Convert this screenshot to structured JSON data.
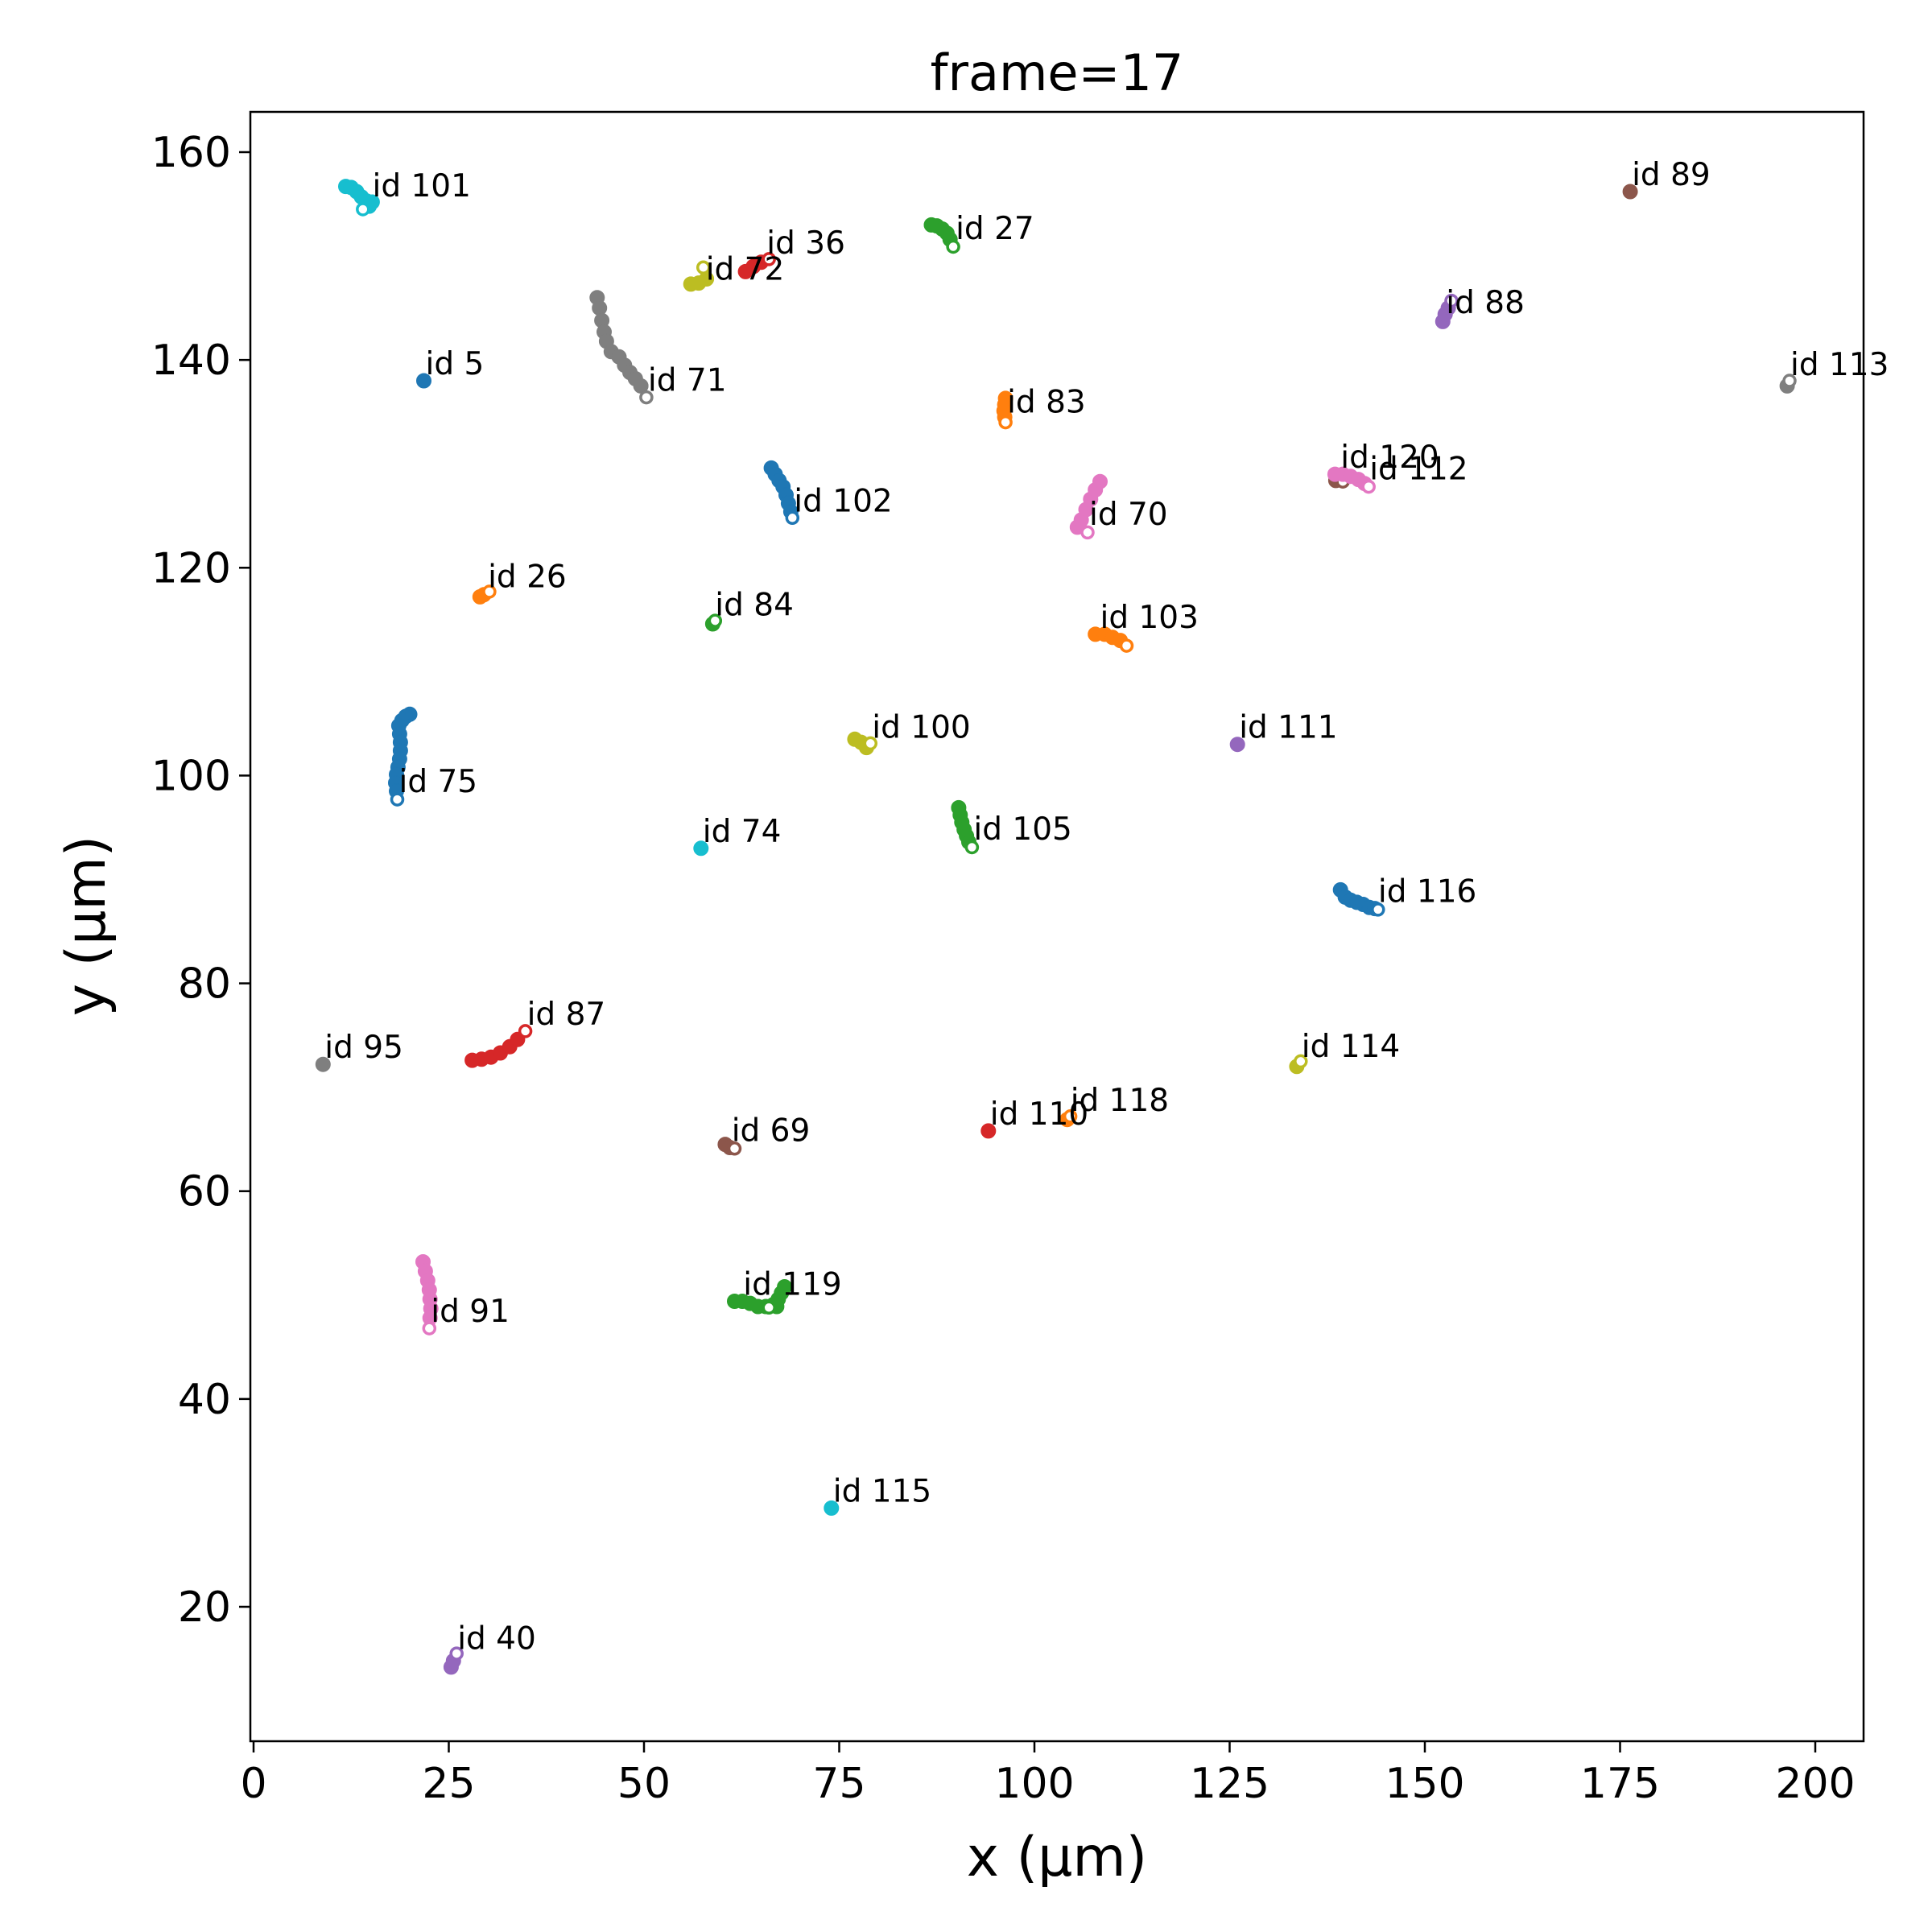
{
  "chart_data": {
    "type": "scatter",
    "title": "frame=17",
    "xlabel": "x (μm)",
    "ylabel": "y (μm)",
    "xlim": [
      -0.5,
      206
    ],
    "ylim": [
      7,
      164
    ],
    "xticks": [
      0,
      25,
      50,
      75,
      100,
      125,
      150,
      175,
      200
    ],
    "yticks": [
      20,
      40,
      60,
      80,
      100,
      120,
      140,
      160
    ],
    "grid": false,
    "legend": "none",
    "series": [
      {
        "label": "id 5",
        "color": "#1f77b4",
        "points": [
          [
            21.8,
            138.0
          ]
        ]
      },
      {
        "label": "id 26",
        "color": "#ff7f0e",
        "points": [
          [
            29.0,
            117.2
          ],
          [
            29.5,
            117.4
          ],
          [
            30.2,
            117.7
          ]
        ]
      },
      {
        "label": "id 27",
        "color": "#2ca02c",
        "points": [
          [
            86.8,
            153.0
          ],
          [
            87.5,
            152.9
          ],
          [
            88.2,
            152.6
          ],
          [
            88.8,
            152.2
          ],
          [
            89.2,
            151.6
          ],
          [
            89.6,
            150.9
          ]
        ]
      },
      {
        "label": "id 36",
        "color": "#d62728",
        "points": [
          [
            63.0,
            148.5
          ],
          [
            64.0,
            149.0
          ],
          [
            65.0,
            149.4
          ],
          [
            66.0,
            149.7
          ]
        ]
      },
      {
        "label": "id 40",
        "color": "#9467bd",
        "points": [
          [
            25.3,
            14.2
          ],
          [
            25.6,
            14.8
          ],
          [
            26.0,
            15.5
          ]
        ]
      },
      {
        "label": "id 69",
        "color": "#8c564b",
        "points": [
          [
            60.4,
            64.5
          ],
          [
            61.0,
            64.2
          ],
          [
            61.6,
            64.1
          ]
        ]
      },
      {
        "label": "id 70",
        "color": "#e377c2",
        "points": [
          [
            105.5,
            123.9
          ],
          [
            106.0,
            124.6
          ],
          [
            106.6,
            125.6
          ],
          [
            107.2,
            126.6
          ],
          [
            107.8,
            127.5
          ],
          [
            108.4,
            128.3
          ],
          [
            106.8,
            123.4
          ]
        ]
      },
      {
        "label": "id 71",
        "color": "#7f7f7f",
        "points": [
          [
            44.0,
            146.0
          ],
          [
            44.3,
            145.0
          ],
          [
            44.6,
            143.8
          ],
          [
            44.9,
            142.7
          ],
          [
            45.2,
            141.8
          ],
          [
            45.8,
            140.8
          ],
          [
            46.8,
            140.3
          ],
          [
            47.5,
            139.5
          ],
          [
            48.2,
            138.8
          ],
          [
            48.9,
            138.2
          ],
          [
            49.6,
            137.5
          ],
          [
            50.3,
            136.4
          ]
        ]
      },
      {
        "label": "id 72",
        "color": "#bcbd22",
        "points": [
          [
            56.0,
            147.3
          ],
          [
            57.0,
            147.4
          ],
          [
            58.0,
            147.8
          ],
          [
            57.6,
            148.9
          ]
        ]
      },
      {
        "label": "id 74",
        "color": "#17becf",
        "points": [
          [
            57.3,
            93.0
          ]
        ]
      },
      {
        "label": "id 75",
        "color": "#1f77b4",
        "points": [
          [
            20.0,
            105.9
          ],
          [
            19.5,
            105.7
          ],
          [
            19.0,
            105.3
          ],
          [
            18.6,
            104.8
          ],
          [
            18.7,
            104.0
          ],
          [
            18.8,
            103.2
          ],
          [
            18.8,
            102.4
          ],
          [
            18.7,
            101.6
          ],
          [
            18.5,
            100.8
          ],
          [
            18.3,
            100.1
          ],
          [
            18.2,
            99.3
          ],
          [
            18.3,
            98.5
          ],
          [
            18.4,
            97.7
          ]
        ]
      },
      {
        "label": "id 83",
        "color": "#ff7f0e",
        "points": [
          [
            96.3,
            136.3
          ],
          [
            96.2,
            135.7
          ],
          [
            96.1,
            135.1
          ],
          [
            96.2,
            134.5
          ],
          [
            96.3,
            134.0
          ]
        ]
      },
      {
        "label": "id 84",
        "color": "#2ca02c",
        "points": [
          [
            58.8,
            114.6
          ],
          [
            59.1,
            114.9
          ]
        ]
      },
      {
        "label": "id 87",
        "color": "#d62728",
        "points": [
          [
            28.0,
            72.6
          ],
          [
            29.2,
            72.7
          ],
          [
            30.4,
            72.9
          ],
          [
            31.6,
            73.3
          ],
          [
            32.8,
            73.9
          ],
          [
            33.8,
            74.6
          ],
          [
            34.8,
            75.4
          ]
        ]
      },
      {
        "label": "id 88",
        "color": "#9467bd",
        "points": [
          [
            152.3,
            143.7
          ],
          [
            152.6,
            144.4
          ],
          [
            153.0,
            145.0
          ],
          [
            153.4,
            145.7
          ]
        ]
      },
      {
        "label": "id 89",
        "color": "#8c564b",
        "points": [
          [
            176.3,
            156.2
          ]
        ]
      },
      {
        "label": "id 91",
        "color": "#e377c2",
        "points": [
          [
            21.7,
            53.2
          ],
          [
            22.0,
            52.3
          ],
          [
            22.3,
            51.4
          ],
          [
            22.5,
            50.5
          ],
          [
            22.6,
            49.6
          ],
          [
            22.7,
            48.7
          ],
          [
            22.6,
            47.8
          ],
          [
            22.5,
            46.8
          ]
        ]
      },
      {
        "label": "id 95",
        "color": "#7f7f7f",
        "points": [
          [
            8.9,
            72.2
          ]
        ]
      },
      {
        "label": "id 100",
        "color": "#bcbd22",
        "points": [
          [
            77.0,
            103.5
          ],
          [
            77.8,
            103.2
          ],
          [
            78.5,
            102.7
          ],
          [
            79.0,
            103.1
          ]
        ]
      },
      {
        "label": "id 101",
        "color": "#17becf",
        "points": [
          [
            11.8,
            156.7
          ],
          [
            12.5,
            156.6
          ],
          [
            13.2,
            156.2
          ],
          [
            13.8,
            155.7
          ],
          [
            14.5,
            155.3
          ],
          [
            15.2,
            155.2
          ],
          [
            14.8,
            154.8
          ],
          [
            14.0,
            154.5
          ]
        ]
      },
      {
        "label": "id 102",
        "color": "#1f77b4",
        "points": [
          [
            66.3,
            129.6
          ],
          [
            66.8,
            129.0
          ],
          [
            67.3,
            128.4
          ],
          [
            67.8,
            127.8
          ],
          [
            68.2,
            127.0
          ],
          [
            68.5,
            126.2
          ],
          [
            68.8,
            125.4
          ],
          [
            69.0,
            124.8
          ]
        ]
      },
      {
        "label": "id 103",
        "color": "#ff7f0e",
        "points": [
          [
            107.8,
            113.6
          ],
          [
            109.0,
            113.6
          ],
          [
            110.0,
            113.3
          ],
          [
            111.0,
            113.0
          ],
          [
            111.8,
            112.5
          ]
        ]
      },
      {
        "label": "id 105",
        "color": "#2ca02c",
        "points": [
          [
            90.3,
            96.9
          ],
          [
            90.5,
            96.2
          ],
          [
            90.7,
            95.5
          ],
          [
            91.0,
            94.8
          ],
          [
            91.3,
            94.2
          ],
          [
            91.6,
            93.6
          ],
          [
            92.0,
            93.1
          ]
        ]
      },
      {
        "label": "id 110",
        "color": "#d62728",
        "points": [
          [
            94.1,
            65.8
          ]
        ]
      },
      {
        "label": "id 111",
        "color": "#9467bd",
        "points": [
          [
            126.0,
            103.0
          ]
        ]
      },
      {
        "label": "id 112",
        "color": "#8c564b",
        "points": [
          [
            138.6,
            128.4
          ],
          [
            139.5,
            128.3
          ]
        ]
      },
      {
        "label": "id 113",
        "color": "#7f7f7f",
        "points": [
          [
            196.4,
            137.5
          ],
          [
            196.7,
            138.0
          ]
        ]
      },
      {
        "label": "id 114",
        "color": "#bcbd22",
        "points": [
          [
            133.6,
            72.0
          ],
          [
            134.1,
            72.5
          ]
        ]
      },
      {
        "label": "id 115",
        "color": "#17becf",
        "points": [
          [
            74.0,
            29.5
          ]
        ]
      },
      {
        "label": "id 116",
        "color": "#1f77b4",
        "points": [
          [
            139.2,
            89.0
          ],
          [
            139.8,
            88.3
          ],
          [
            140.5,
            88.0
          ],
          [
            141.3,
            87.8
          ],
          [
            142.1,
            87.6
          ],
          [
            142.9,
            87.3
          ],
          [
            143.6,
            87.2
          ],
          [
            144.0,
            87.1
          ]
        ]
      },
      {
        "label": "id 118",
        "color": "#ff7f0e",
        "points": [
          [
            104.2,
            66.9
          ],
          [
            104.6,
            67.2
          ]
        ]
      },
      {
        "label": "id 119",
        "color": "#2ca02c",
        "points": [
          [
            61.6,
            49.4
          ],
          [
            62.6,
            49.4
          ],
          [
            63.6,
            49.2
          ],
          [
            64.6,
            48.9
          ],
          [
            65.6,
            48.9
          ],
          [
            66.6,
            49.1
          ],
          [
            67.2,
            49.6
          ],
          [
            67.6,
            50.2
          ],
          [
            68.0,
            50.8
          ],
          [
            67.0,
            48.9
          ],
          [
            66.0,
            48.8
          ]
        ]
      },
      {
        "label": "id 120",
        "color": "#e377c2",
        "points": [
          [
            138.5,
            129.0
          ],
          [
            139.5,
            129.0
          ],
          [
            140.5,
            128.8
          ],
          [
            141.5,
            128.5
          ],
          [
            142.3,
            128.1
          ],
          [
            142.8,
            127.8
          ]
        ]
      }
    ],
    "labels": [
      {
        "text": "id 5",
        "x": 21.8,
        "y": 138.0
      },
      {
        "text": "id 26",
        "x": 29.8,
        "y": 117.5
      },
      {
        "text": "id 27",
        "x": 89.7,
        "y": 151.0
      },
      {
        "text": "id 36",
        "x": 65.5,
        "y": 149.6
      },
      {
        "text": "id 40",
        "x": 25.9,
        "y": 15.3
      },
      {
        "text": "id 69",
        "x": 61.0,
        "y": 64.2
      },
      {
        "text": "id 70",
        "x": 106.8,
        "y": 123.5
      },
      {
        "text": "id 71",
        "x": 50.3,
        "y": 136.4
      },
      {
        "text": "id 72",
        "x": 57.7,
        "y": 147.1
      },
      {
        "text": "id 74",
        "x": 57.3,
        "y": 93.0
      },
      {
        "text": "id 75",
        "x": 18.4,
        "y": 97.8
      },
      {
        "text": "id 83",
        "x": 96.3,
        "y": 134.3
      },
      {
        "text": "id 84",
        "x": 58.9,
        "y": 114.8
      },
      {
        "text": "id 87",
        "x": 34.8,
        "y": 75.4
      },
      {
        "text": "id 88",
        "x": 152.5,
        "y": 143.9
      },
      {
        "text": "id 89",
        "x": 176.3,
        "y": 156.2
      },
      {
        "text": "id 91",
        "x": 22.5,
        "y": 46.8
      },
      {
        "text": "id 95",
        "x": 8.9,
        "y": 72.2
      },
      {
        "text": "id 100",
        "x": 79.0,
        "y": 103.0
      },
      {
        "text": "id 101",
        "x": 15.0,
        "y": 155.1
      },
      {
        "text": "id 102",
        "x": 69.0,
        "y": 124.8
      },
      {
        "text": "id 103",
        "x": 108.2,
        "y": 113.6
      },
      {
        "text": "id 105",
        "x": 92.0,
        "y": 93.2
      },
      {
        "text": "id 110",
        "x": 94.1,
        "y": 65.8
      },
      {
        "text": "id 111",
        "x": 126.0,
        "y": 103.0
      },
      {
        "text": "id 112",
        "x": 142.7,
        "y": 127.9
      },
      {
        "text": "id 113",
        "x": 196.6,
        "y": 137.9
      },
      {
        "text": "id 114",
        "x": 134.0,
        "y": 72.3
      },
      {
        "text": "id 115",
        "x": 74.0,
        "y": 29.5
      },
      {
        "text": "id 116",
        "x": 143.8,
        "y": 87.2
      },
      {
        "text": "id 118",
        "x": 104.4,
        "y": 67.1
      },
      {
        "text": "id 119",
        "x": 62.5,
        "y": 49.4
      },
      {
        "text": "id 120",
        "x": 139.0,
        "y": 129.0
      }
    ]
  }
}
